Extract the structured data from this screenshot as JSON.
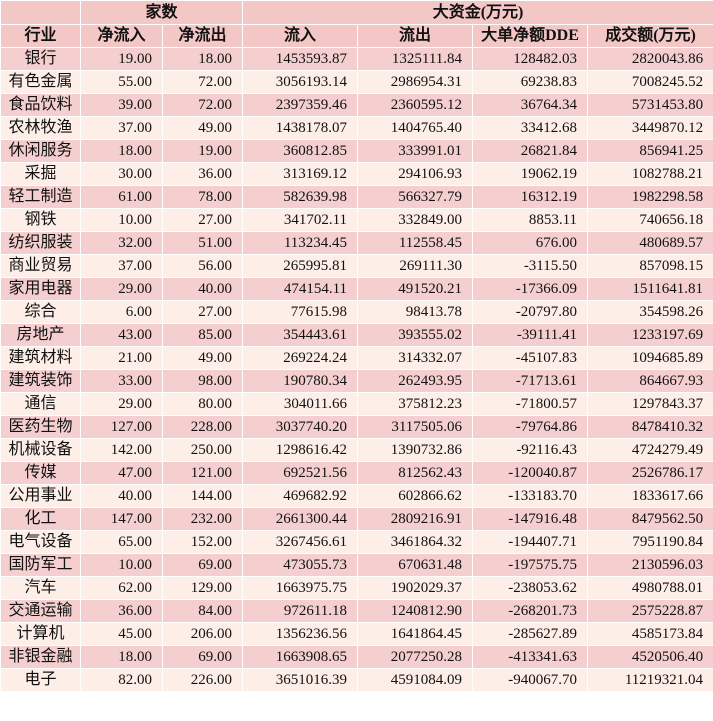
{
  "header": {
    "industry": "行业",
    "group_count": "家数",
    "group_capital": "大资金(万元)",
    "columns": [
      "净流入",
      "净流出",
      "流入",
      "流出",
      "大单净额DDE",
      "成交额(万元)"
    ]
  },
  "rows": [
    [
      "银行",
      "19.00",
      "18.00",
      "1453593.87",
      "1325111.84",
      "128482.03",
      "2820043.86"
    ],
    [
      "有色金属",
      "55.00",
      "72.00",
      "3056193.14",
      "2986954.31",
      "69238.83",
      "7008245.52"
    ],
    [
      "食品饮料",
      "39.00",
      "72.00",
      "2397359.46",
      "2360595.12",
      "36764.34",
      "5731453.80"
    ],
    [
      "农林牧渔",
      "37.00",
      "49.00",
      "1438178.07",
      "1404765.40",
      "33412.68",
      "3449870.12"
    ],
    [
      "休闲服务",
      "18.00",
      "19.00",
      "360812.85",
      "333991.01",
      "26821.84",
      "856941.25"
    ],
    [
      "采掘",
      "30.00",
      "36.00",
      "313169.12",
      "294106.93",
      "19062.19",
      "1082788.21"
    ],
    [
      "轻工制造",
      "61.00",
      "78.00",
      "582639.98",
      "566327.79",
      "16312.19",
      "1982298.58"
    ],
    [
      "钢铁",
      "10.00",
      "27.00",
      "341702.11",
      "332849.00",
      "8853.11",
      "740656.18"
    ],
    [
      "纺织服装",
      "32.00",
      "51.00",
      "113234.45",
      "112558.45",
      "676.00",
      "480689.57"
    ],
    [
      "商业贸易",
      "37.00",
      "56.00",
      "265995.81",
      "269111.30",
      "-3115.50",
      "857098.15"
    ],
    [
      "家用电器",
      "29.00",
      "40.00",
      "474154.11",
      "491520.21",
      "-17366.09",
      "1511641.81"
    ],
    [
      "综合",
      "6.00",
      "27.00",
      "77615.98",
      "98413.78",
      "-20797.80",
      "354598.26"
    ],
    [
      "房地产",
      "43.00",
      "85.00",
      "354443.61",
      "393555.02",
      "-39111.41",
      "1233197.69"
    ],
    [
      "建筑材料",
      "21.00",
      "49.00",
      "269224.24",
      "314332.07",
      "-45107.83",
      "1094685.89"
    ],
    [
      "建筑装饰",
      "33.00",
      "98.00",
      "190780.34",
      "262493.95",
      "-71713.61",
      "864667.93"
    ],
    [
      "通信",
      "29.00",
      "80.00",
      "304011.66",
      "375812.23",
      "-71800.57",
      "1297843.37"
    ],
    [
      "医药生物",
      "127.00",
      "228.00",
      "3037740.20",
      "3117505.06",
      "-79764.86",
      "8478410.32"
    ],
    [
      "机械设备",
      "142.00",
      "250.00",
      "1298616.42",
      "1390732.86",
      "-92116.43",
      "4724279.49"
    ],
    [
      "传媒",
      "47.00",
      "121.00",
      "692521.56",
      "812562.43",
      "-120040.87",
      "2526786.17"
    ],
    [
      "公用事业",
      "40.00",
      "144.00",
      "469682.92",
      "602866.62",
      "-133183.70",
      "1833617.66"
    ],
    [
      "化工",
      "147.00",
      "232.00",
      "2661300.44",
      "2809216.91",
      "-147916.48",
      "8479562.50"
    ],
    [
      "电气设备",
      "65.00",
      "152.00",
      "3267456.61",
      "3461864.32",
      "-194407.71",
      "7951190.84"
    ],
    [
      "国防军工",
      "10.00",
      "69.00",
      "473055.73",
      "670631.48",
      "-197575.75",
      "2130596.03"
    ],
    [
      "汽车",
      "62.00",
      "129.00",
      "1663975.75",
      "1902029.37",
      "-238053.62",
      "4980788.01"
    ],
    [
      "交通运输",
      "36.00",
      "84.00",
      "972611.18",
      "1240812.90",
      "-268201.73",
      "2575228.87"
    ],
    [
      "计算机",
      "45.00",
      "206.00",
      "1356236.56",
      "1641864.45",
      "-285627.89",
      "4585173.84"
    ],
    [
      "非银金融",
      "18.00",
      "69.00",
      "1663908.65",
      "2077250.28",
      "-413341.63",
      "4520506.40"
    ],
    [
      "电子",
      "82.00",
      "226.00",
      "3651016.39",
      "4591084.09",
      "-940067.70",
      "11219321.04"
    ]
  ]
}
